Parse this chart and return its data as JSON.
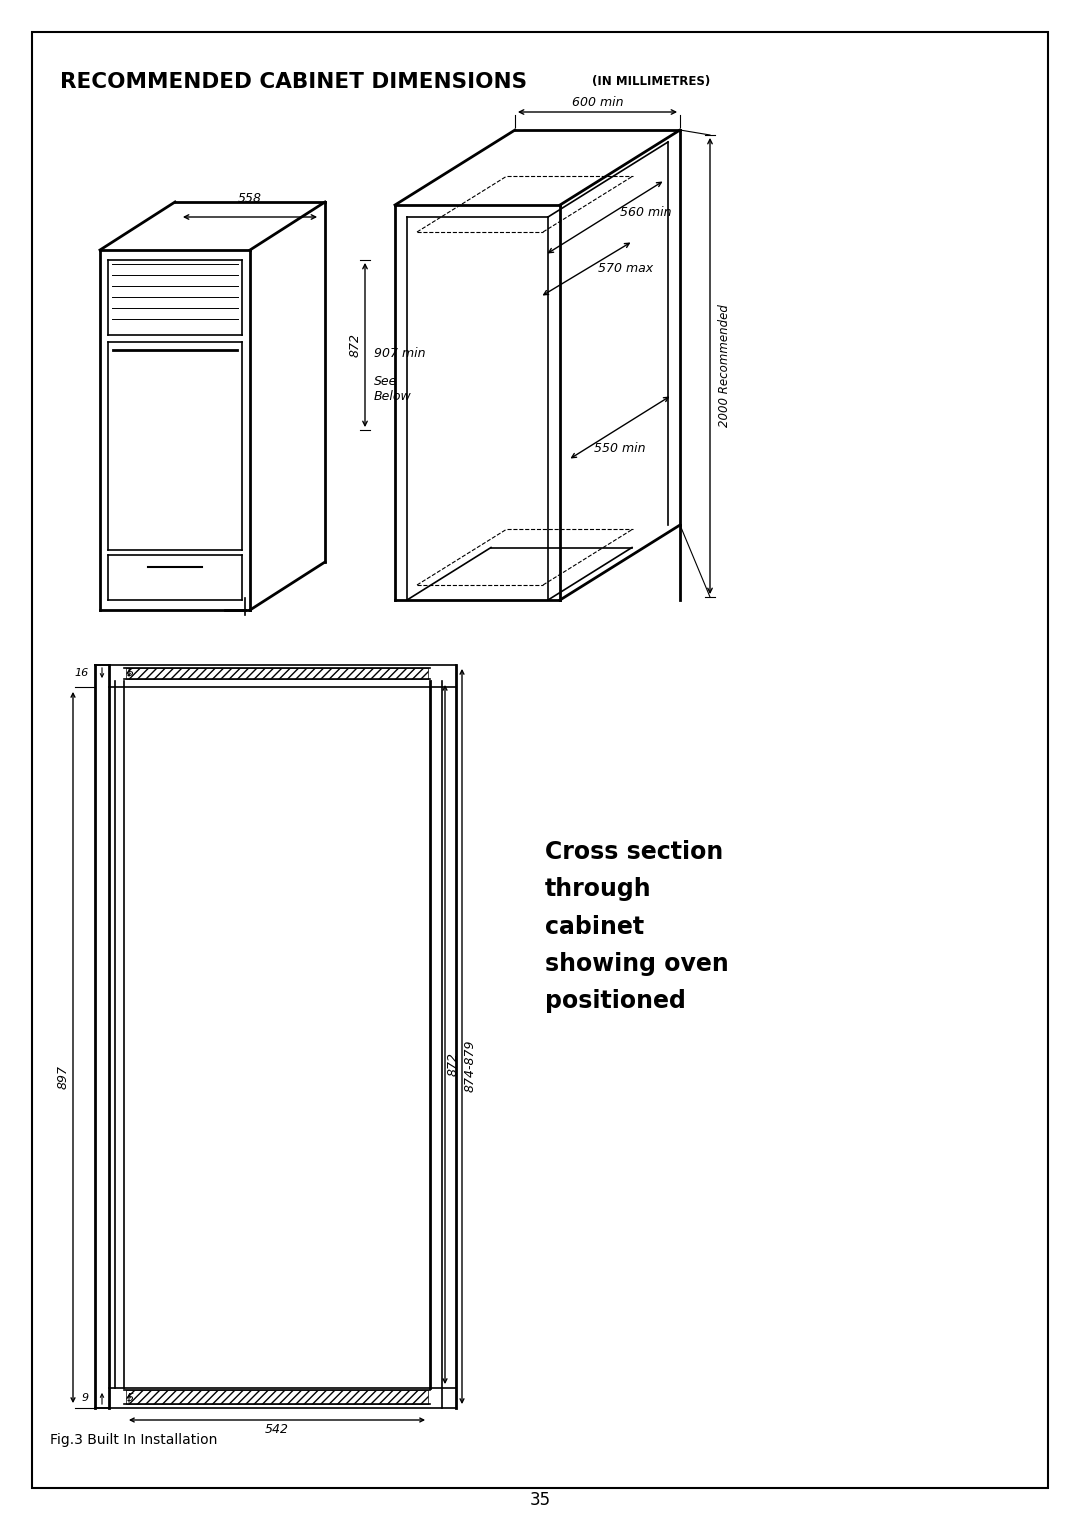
{
  "title_main": "RECOMMENDED CABINET DIMENSIONS",
  "title_sub": "(IN MILLIMETRES)",
  "page_number": "35",
  "fig_caption": "Fig.3 Built In Installation",
  "cross_section_text": "Cross section\nthrough\ncabinet\nshowing oven\npositioned",
  "bg_color": "#ffffff",
  "line_color": "#000000",
  "dim_600": "600 min",
  "dim_560": "560 min",
  "dim_570": "570 max",
  "dim_550": "550 min",
  "dim_558": "558",
  "dim_872": "872",
  "dim_907": "907 min",
  "dim_see_below": "See\nBelow",
  "dim_2000": "2000 Recommended",
  "dim_16": "16",
  "dim_5": "5",
  "dim_897": "897",
  "dim_872cs": "872",
  "dim_874": "874-879",
  "dim_9": "9",
  "dim_542": "542"
}
